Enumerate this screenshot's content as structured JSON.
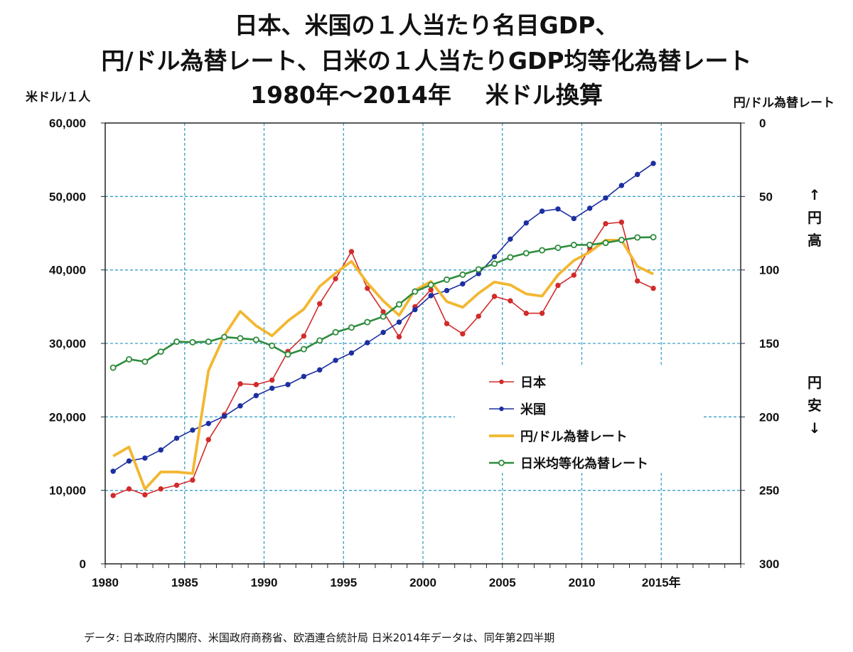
{
  "chart_data": {
    "type": "line",
    "title_lines": [
      "日本、米国の１人当たり名目GDP、",
      "円/ドル為替レート、日米の１人当たりGDP均等化為替レート"
    ],
    "subtitle_period": "1980年～2014年",
    "subtitle_currency": "米ドル換算",
    "y_left_label": "米ドル/１人",
    "y_right_label": "円/ドル為替レート",
    "right_axis_annotations": {
      "up": [
        "↑",
        "円",
        "高"
      ],
      "down": [
        "円",
        "安",
        "↓"
      ]
    },
    "source_note": "データ:  日本政府内閣府、米国政府商務省、欧酒連合統計局     日米2014年データは、同年第2四半期",
    "x_range": [
      1980,
      2020
    ],
    "y_left_range": [
      0,
      60000
    ],
    "y_right_range": [
      0,
      300
    ],
    "y_right_inverted": true,
    "x_ticks": [
      {
        "value": 1980,
        "label": "1980"
      },
      {
        "value": 1985,
        "label": "1985"
      },
      {
        "value": 1990,
        "label": "1990"
      },
      {
        "value": 1995,
        "label": "1995"
      },
      {
        "value": 2000,
        "label": "2000"
      },
      {
        "value": 2005,
        "label": "2005"
      },
      {
        "value": 2010,
        "label": "2010"
      },
      {
        "value": 2015,
        "label": "2015年"
      }
    ],
    "y_left_ticks": [
      {
        "value": 0,
        "label": "0"
      },
      {
        "value": 10000,
        "label": "10,000"
      },
      {
        "value": 20000,
        "label": "20,000"
      },
      {
        "value": 30000,
        "label": "30,000"
      },
      {
        "value": 40000,
        "label": "40,000"
      },
      {
        "value": 50000,
        "label": "50,000"
      },
      {
        "value": 60000,
        "label": "60,000"
      }
    ],
    "y_right_ticks": [
      {
        "value": 0,
        "label": "0"
      },
      {
        "value": 50,
        "label": "50"
      },
      {
        "value": 100,
        "label": "100"
      },
      {
        "value": 150,
        "label": "150"
      },
      {
        "value": 200,
        "label": "200"
      },
      {
        "value": 250,
        "label": "250"
      },
      {
        "value": 300,
        "label": "300"
      }
    ],
    "grid": true,
    "legend_position": "center-right",
    "x": [
      1980,
      1981,
      1982,
      1983,
      1984,
      1985,
      1986,
      1987,
      1988,
      1989,
      1990,
      1991,
      1992,
      1993,
      1994,
      1995,
      1996,
      1997,
      1998,
      1999,
      2000,
      2001,
      2002,
      2003,
      2004,
      2005,
      2006,
      2007,
      2008,
      2009,
      2010,
      2011,
      2012,
      2013,
      2014
    ],
    "series": [
      {
        "name": "日本",
        "axis": "left",
        "color": "#d22b2b",
        "marker": "filled",
        "values": [
          9300,
          10200,
          9400,
          10200,
          10700,
          11400,
          16900,
          20300,
          24500,
          24400,
          25000,
          28900,
          31000,
          35400,
          38800,
          42500,
          37500,
          34300,
          30900,
          35000,
          37300,
          32700,
          31300,
          33700,
          36400,
          35800,
          34100,
          34100,
          37900,
          39300,
          43000,
          46300,
          46500,
          38500,
          37500
        ]
      },
      {
        "name": "米国",
        "axis": "left",
        "color": "#1c2fa0",
        "marker": "filled",
        "values": [
          12600,
          14000,
          14400,
          15500,
          17100,
          18200,
          19100,
          20100,
          21500,
          22900,
          23900,
          24400,
          25500,
          26400,
          27700,
          28700,
          30100,
          31500,
          32900,
          34600,
          36500,
          37200,
          38100,
          39500,
          41800,
          44200,
          46400,
          48000,
          48300,
          47000,
          48400,
          49800,
          51500,
          53000,
          54500
        ]
      },
      {
        "name": "円/ドル為替レート",
        "axis": "right",
        "color": "#f2b731",
        "marker": "none",
        "values": [
          226.7,
          220.5,
          249.1,
          237.5,
          237.5,
          238.5,
          168.5,
          144.6,
          128.2,
          138.0,
          144.8,
          134.7,
          126.7,
          111.2,
          102.2,
          94.1,
          108.8,
          121.0,
          130.9,
          113.9,
          107.8,
          121.5,
          125.4,
          115.9,
          108.2,
          110.2,
          116.3,
          117.8,
          103.4,
          93.6,
          87.8,
          79.8,
          79.8,
          97.6,
          102.8
        ]
      },
      {
        "name": "日米均等化為替レート",
        "axis": "right",
        "color": "#2e8b3d",
        "marker": "open",
        "values": [
          166.5,
          160.8,
          162.4,
          155.6,
          148.8,
          149.2,
          148.8,
          145.7,
          146.5,
          147.5,
          151.6,
          157.5,
          153.9,
          148.0,
          142.4,
          139.2,
          135.5,
          131.7,
          123.4,
          114.7,
          110.2,
          106.6,
          103.2,
          99.6,
          95.7,
          91.4,
          88.6,
          86.6,
          84.9,
          83.0,
          82.9,
          81.6,
          79.6,
          77.9,
          77.7
        ]
      }
    ]
  }
}
